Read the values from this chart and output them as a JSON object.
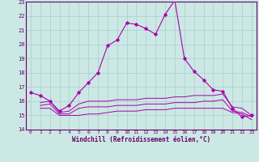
{
  "xlabel": "Windchill (Refroidissement éolien,°C)",
  "bg_color": "#cce8e4",
  "grid_color": "#aacccc",
  "line_color": "#aa00aa",
  "xlim": [
    -0.5,
    23.5
  ],
  "ylim": [
    14,
    23
  ],
  "yticks": [
    14,
    15,
    16,
    17,
    18,
    19,
    20,
    21,
    22,
    23
  ],
  "xticks": [
    0,
    1,
    2,
    3,
    4,
    5,
    6,
    7,
    8,
    9,
    10,
    11,
    12,
    13,
    14,
    15,
    16,
    17,
    18,
    19,
    20,
    21,
    22,
    23
  ],
  "main_line": {
    "x": [
      0,
      1,
      2,
      3,
      4,
      5,
      6,
      7,
      8,
      9,
      10,
      11,
      12,
      13,
      14,
      15,
      16,
      17,
      18,
      19,
      20,
      21,
      22,
      23
    ],
    "y": [
      16.6,
      16.4,
      16.0,
      15.3,
      15.7,
      16.6,
      17.3,
      18.0,
      19.9,
      20.3,
      21.5,
      21.4,
      21.1,
      20.7,
      22.1,
      23.1,
      19.0,
      18.1,
      17.5,
      16.8,
      16.7,
      15.5,
      14.9,
      15.0
    ]
  },
  "flat_lines": [
    {
      "x": [
        1,
        2,
        3,
        4,
        5,
        6,
        7,
        8,
        9,
        10,
        11,
        12,
        13,
        14,
        15,
        16,
        17,
        18,
        19,
        20,
        21,
        22,
        23
      ],
      "y": [
        15.9,
        16.0,
        15.2,
        15.3,
        15.8,
        16.0,
        16.0,
        16.0,
        16.1,
        16.1,
        16.1,
        16.2,
        16.2,
        16.2,
        16.3,
        16.3,
        16.4,
        16.4,
        16.4,
        16.5,
        15.6,
        15.5,
        15.0
      ]
    },
    {
      "x": [
        1,
        2,
        3,
        4,
        5,
        6,
        7,
        8,
        9,
        10,
        11,
        12,
        13,
        14,
        15,
        16,
        17,
        18,
        19,
        20,
        21,
        22,
        23
      ],
      "y": [
        15.7,
        15.8,
        15.1,
        15.1,
        15.5,
        15.6,
        15.6,
        15.6,
        15.7,
        15.7,
        15.7,
        15.8,
        15.8,
        15.8,
        15.9,
        15.9,
        15.9,
        16.0,
        16.0,
        16.1,
        15.3,
        15.2,
        14.9
      ]
    },
    {
      "x": [
        1,
        2,
        3,
        4,
        5,
        6,
        7,
        8,
        9,
        10,
        11,
        12,
        13,
        14,
        15,
        16,
        17,
        18,
        19,
        20,
        21,
        22,
        23
      ],
      "y": [
        15.5,
        15.5,
        15.0,
        15.0,
        15.0,
        15.1,
        15.1,
        15.2,
        15.3,
        15.3,
        15.3,
        15.4,
        15.4,
        15.4,
        15.5,
        15.5,
        15.5,
        15.5,
        15.5,
        15.5,
        15.2,
        15.1,
        14.7
      ]
    }
  ]
}
